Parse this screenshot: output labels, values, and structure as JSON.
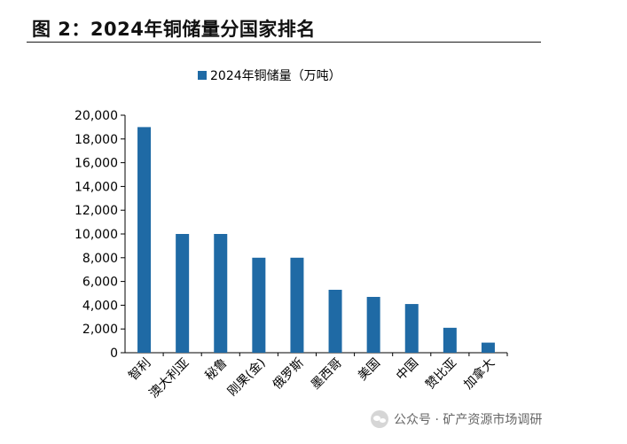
{
  "figure": {
    "title": "图 2：2024年铜储量分国家排名"
  },
  "watermark": {
    "icon": "wechat-icon",
    "text": "公众号 · 矿产资源市场调研"
  },
  "colors": {
    "bar": "#1f6aa5",
    "axis": "#000000",
    "text": "#000000"
  },
  "chart_data": {
    "type": "bar",
    "title": "",
    "xlabel": "",
    "ylabel": "",
    "ylim": [
      0,
      20000
    ],
    "yticks": [
      "0",
      "2,000",
      "4,000",
      "6,000",
      "8,000",
      "10,000",
      "12,000",
      "14,000",
      "16,000",
      "18,000",
      "20,000"
    ],
    "grid": false,
    "legend_position": "top-center",
    "categories": [
      "智利",
      "澳大利亚",
      "秘鲁",
      "刚果(金)",
      "俄罗斯",
      "墨西哥",
      "美国",
      "中国",
      "赞比亚",
      "加拿大"
    ],
    "series": [
      {
        "name": "2024年铜储量（万吨）",
        "values": [
          19000,
          10000,
          10000,
          8000,
          8000,
          5300,
          4700,
          4100,
          2100,
          850
        ]
      }
    ]
  }
}
